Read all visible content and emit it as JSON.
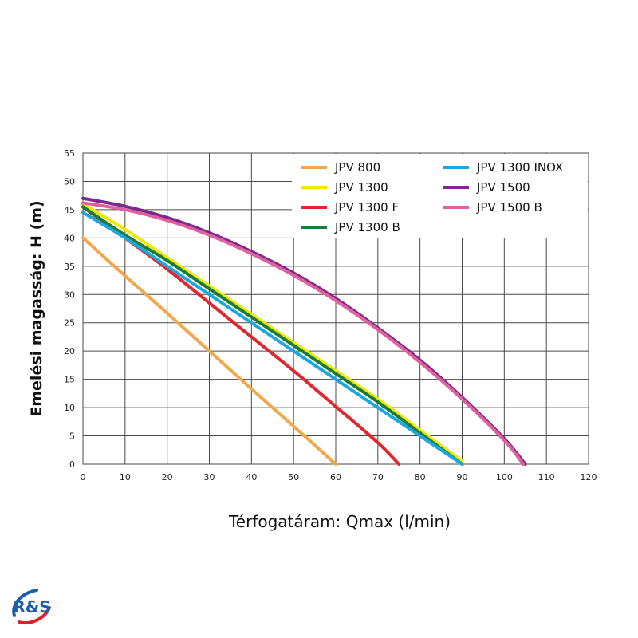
{
  "chart_data": {
    "type": "line",
    "xlabel": "Térfogatáram: Qmax (l/min)",
    "ylabel": "Emelési magasság: H (m)",
    "xlim": [
      0,
      120
    ],
    "ylim": [
      0,
      55
    ],
    "xticks": [
      0,
      10,
      20,
      30,
      40,
      50,
      60,
      70,
      80,
      90,
      100,
      110,
      120
    ],
    "yticks": [
      0,
      5,
      10,
      15,
      20,
      25,
      30,
      35,
      40,
      45,
      50,
      55
    ],
    "grid": true,
    "legend_position": "top-right",
    "series": [
      {
        "name": "JPV 800",
        "color": "#f2a84a",
        "x": [
          0,
          10,
          20,
          30,
          40,
          50,
          60
        ],
        "y": [
          40,
          33.3,
          26.7,
          20,
          13.3,
          6.7,
          0
        ]
      },
      {
        "name": "JPV 1300",
        "color": "#f1e600",
        "x": [
          0,
          10,
          20,
          30,
          40,
          50,
          60,
          70,
          80,
          90
        ],
        "y": [
          46,
          41.5,
          36.5,
          31.5,
          26.5,
          21.5,
          16.5,
          11.5,
          6,
          0.5
        ]
      },
      {
        "name": "JPV 1300 F",
        "color": "#e1262d",
        "x": [
          0,
          10,
          20,
          30,
          40,
          50,
          60,
          70,
          75
        ],
        "y": [
          45.5,
          40,
          34.5,
          28.5,
          22.5,
          16.5,
          10.2,
          3.8,
          0
        ]
      },
      {
        "name": "JPV 1300 B",
        "color": "#1c7a3a",
        "x": [
          0,
          10,
          20,
          30,
          40,
          50,
          60,
          70,
          80,
          90
        ],
        "y": [
          45.5,
          40.5,
          36,
          31,
          26,
          21,
          16,
          11,
          5.5,
          0
        ]
      },
      {
        "name": "JPV 1300 INOX",
        "color": "#1aa8df",
        "x": [
          0,
          10,
          20,
          30,
          40,
          50,
          60,
          70,
          80,
          90
        ],
        "y": [
          44.5,
          40,
          35,
          30,
          25,
          20,
          15,
          10,
          5,
          0
        ]
      },
      {
        "name": "JPV 1500",
        "color": "#7a2a8e",
        "x": [
          0,
          10,
          20,
          30,
          40,
          50,
          60,
          70,
          80,
          90,
          100,
          105
        ],
        "y": [
          47,
          45.6,
          43.6,
          40.9,
          37.6,
          33.8,
          29.3,
          24.1,
          18.4,
          11.8,
          4.5,
          0
        ]
      },
      {
        "name": "JPV 1500 B",
        "color": "#e0619d",
        "x": [
          0,
          10,
          20,
          30,
          40,
          50,
          60,
          70,
          80,
          90,
          100,
          104.5
        ],
        "y": [
          46.2,
          45,
          43.1,
          40.5,
          37.2,
          33.4,
          28.9,
          23.8,
          18,
          11.5,
          4.2,
          0
        ]
      }
    ]
  },
  "logo": {
    "text": "R&S",
    "colors": [
      "#1f5fa8",
      "#d6262c"
    ]
  }
}
